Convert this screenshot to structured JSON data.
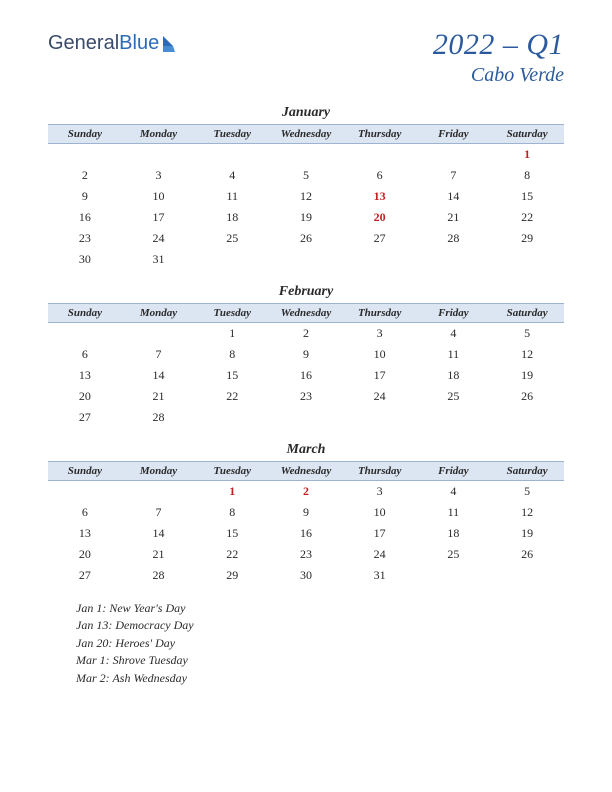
{
  "logo": {
    "text1": "General",
    "text2": "Blue"
  },
  "title": {
    "main": "2022 – Q1",
    "sub": "Cabo Verde"
  },
  "day_headers": [
    "Sunday",
    "Monday",
    "Tuesday",
    "Wednesday",
    "Thursday",
    "Friday",
    "Saturday"
  ],
  "colors": {
    "header_bg": "#dce5f2",
    "header_border": "#9db3d0",
    "title_color": "#2b5a9e",
    "holiday_color": "#c22020",
    "text_color": "#2a2a2a"
  },
  "months": [
    {
      "name": "January",
      "weeks": [
        [
          "",
          "",
          "",
          "",
          "",
          "",
          "1"
        ],
        [
          "2",
          "3",
          "4",
          "5",
          "6",
          "7",
          "8"
        ],
        [
          "9",
          "10",
          "11",
          "12",
          "13",
          "14",
          "15"
        ],
        [
          "16",
          "17",
          "18",
          "19",
          "20",
          "21",
          "22"
        ],
        [
          "23",
          "24",
          "25",
          "26",
          "27",
          "28",
          "29"
        ],
        [
          "30",
          "31",
          "",
          "",
          "",
          "",
          ""
        ]
      ],
      "holidays_idx": [
        [
          0,
          6
        ],
        [
          2,
          4
        ],
        [
          3,
          4
        ]
      ]
    },
    {
      "name": "February",
      "weeks": [
        [
          "",
          "",
          "1",
          "2",
          "3",
          "4",
          "5"
        ],
        [
          "6",
          "7",
          "8",
          "9",
          "10",
          "11",
          "12"
        ],
        [
          "13",
          "14",
          "15",
          "16",
          "17",
          "18",
          "19"
        ],
        [
          "20",
          "21",
          "22",
          "23",
          "24",
          "25",
          "26"
        ],
        [
          "27",
          "28",
          "",
          "",
          "",
          "",
          ""
        ]
      ],
      "holidays_idx": []
    },
    {
      "name": "March",
      "weeks": [
        [
          "",
          "",
          "1",
          "2",
          "3",
          "4",
          "5"
        ],
        [
          "6",
          "7",
          "8",
          "9",
          "10",
          "11",
          "12"
        ],
        [
          "13",
          "14",
          "15",
          "16",
          "17",
          "18",
          "19"
        ],
        [
          "20",
          "21",
          "22",
          "23",
          "24",
          "25",
          "26"
        ],
        [
          "27",
          "28",
          "29",
          "30",
          "31",
          "",
          ""
        ]
      ],
      "holidays_idx": [
        [
          0,
          2
        ],
        [
          0,
          3
        ]
      ]
    }
  ],
  "holiday_list": [
    "Jan 1: New Year's Day",
    "Jan 13: Democracy Day",
    "Jan 20: Heroes' Day",
    "Mar 1: Shrove Tuesday",
    "Mar 2: Ash Wednesday"
  ]
}
